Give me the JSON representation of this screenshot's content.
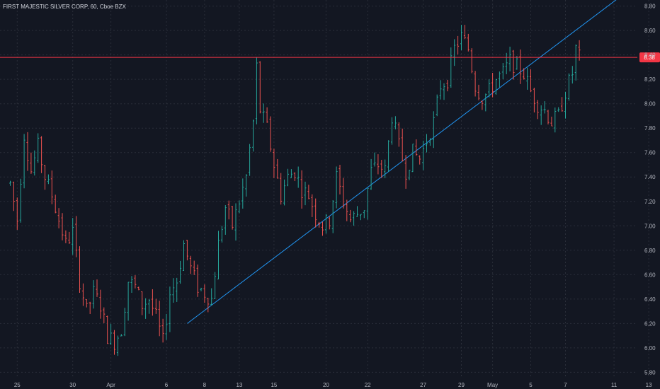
{
  "colors": {
    "background": "#131722",
    "grid": "#2a2e39",
    "up": "#26a69a",
    "down": "#ef5350",
    "trendline": "#2196f3",
    "price_line": "#f23645",
    "axis_text": "#b2b5be"
  },
  "chart_data": {
    "type": "ohlc",
    "title": "FIRST MAJESTIC SILVER CORP, 60, Cboe BZX",
    "ylim": [
      5.75,
      8.85
    ],
    "y_ticks": [
      "5.80",
      "6.00",
      "6.20",
      "6.40",
      "6.60",
      "6.80",
      "7.00",
      "7.20",
      "7.40",
      "7.60",
      "7.80",
      "8.00",
      "8.20",
      "8.40",
      "8.60",
      "8.80"
    ],
    "x_ticks": [
      "25",
      "30",
      "Apr",
      "6",
      "8",
      "13",
      "15",
      "20",
      "22",
      "27",
      "29",
      "May",
      "5",
      "7",
      "11",
      "13"
    ],
    "x_tick_index": [
      2,
      18,
      29,
      45,
      56,
      66,
      76,
      91,
      103,
      119,
      130,
      139,
      150,
      160,
      174,
      184
    ],
    "grid": true,
    "current_price": {
      "value": 8.38,
      "label": "8.38"
    },
    "trendline": {
      "from": {
        "index": 51,
        "price": 6.2
      },
      "to": {
        "index": 175,
        "price": 8.86
      }
    },
    "waypoints": [
      [
        0,
        7.35
      ],
      [
        2,
        7.05
      ],
      [
        4,
        7.75
      ],
      [
        6,
        7.45
      ],
      [
        8,
        7.65
      ],
      [
        10,
        7.4
      ],
      [
        12,
        7.25
      ],
      [
        14,
        7.05
      ],
      [
        16,
        6.85
      ],
      [
        18,
        6.95
      ],
      [
        20,
        6.55
      ],
      [
        22,
        6.3
      ],
      [
        24,
        6.45
      ],
      [
        26,
        6.35
      ],
      [
        28,
        6.1
      ],
      [
        30,
        6.05
      ],
      [
        32,
        6.15
      ],
      [
        34,
        6.55
      ],
      [
        36,
        6.5
      ],
      [
        38,
        6.35
      ],
      [
        40,
        6.4
      ],
      [
        42,
        6.25
      ],
      [
        44,
        6.05
      ],
      [
        46,
        6.45
      ],
      [
        48,
        6.55
      ],
      [
        50,
        6.85
      ],
      [
        52,
        6.65
      ],
      [
        54,
        6.5
      ],
      [
        56,
        6.45
      ],
      [
        58,
        6.4
      ],
      [
        60,
        6.85
      ],
      [
        62,
        7.15
      ],
      [
        64,
        7.0
      ],
      [
        66,
        7.2
      ],
      [
        68,
        7.4
      ],
      [
        70,
        7.85
      ],
      [
        71,
        8.3
      ],
      [
        72,
        7.95
      ],
      [
        74,
        7.8
      ],
      [
        76,
        7.5
      ],
      [
        78,
        7.25
      ],
      [
        80,
        7.4
      ],
      [
        82,
        7.45
      ],
      [
        84,
        7.3
      ],
      [
        86,
        7.25
      ],
      [
        88,
        7.1
      ],
      [
        90,
        7.0
      ],
      [
        92,
        7.05
      ],
      [
        94,
        7.4
      ],
      [
        96,
        7.2
      ],
      [
        98,
        7.05
      ],
      [
        100,
        7.1
      ],
      [
        102,
        7.15
      ],
      [
        104,
        7.45
      ],
      [
        106,
        7.5
      ],
      [
        108,
        7.45
      ],
      [
        110,
        7.9
      ],
      [
        112,
        7.65
      ],
      [
        114,
        7.45
      ],
      [
        116,
        7.6
      ],
      [
        118,
        7.55
      ],
      [
        120,
        7.7
      ],
      [
        122,
        7.85
      ],
      [
        124,
        8.15
      ],
      [
        126,
        8.2
      ],
      [
        128,
        8.45
      ],
      [
        130,
        8.55
      ],
      [
        132,
        8.45
      ],
      [
        134,
        8.15
      ],
      [
        136,
        8.05
      ],
      [
        138,
        8.1
      ],
      [
        140,
        8.2
      ],
      [
        142,
        8.25
      ],
      [
        144,
        8.35
      ],
      [
        146,
        8.3
      ],
      [
        148,
        8.25
      ],
      [
        150,
        8.1
      ],
      [
        152,
        8.0
      ],
      [
        154,
        7.95
      ],
      [
        156,
        7.85
      ],
      [
        158,
        7.9
      ],
      [
        160,
        8.1
      ],
      [
        162,
        8.25
      ],
      [
        163,
        8.45
      ],
      [
        164,
        8.38
      ]
    ]
  }
}
